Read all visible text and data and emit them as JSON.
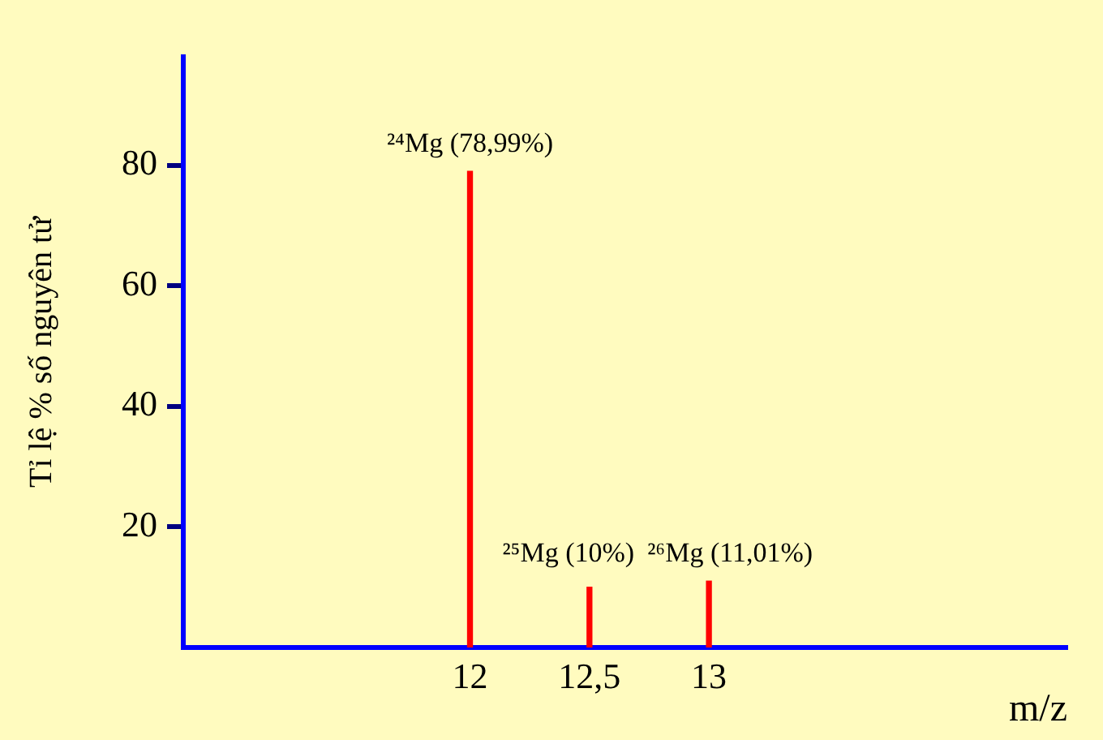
{
  "chart_data": {
    "type": "bar",
    "xlabel": "m/z",
    "ylabel": "Tỉ lệ % số nguyên tử",
    "x": [
      12,
      12.5,
      13
    ],
    "values": [
      78.99,
      10,
      11.01
    ],
    "value_labels": [
      "²⁴Mg (78,99%)",
      "²⁵Mg (10%)",
      "²⁶Mg (11,01%)"
    ],
    "color": "#ff0000",
    "xlim": [
      10.8,
      14.5
    ],
    "xticks": [
      12,
      {
        "value": 12.5,
        "label": "12,5"
      },
      13
    ],
    "ylim": [
      0,
      98
    ],
    "yticks": [
      20,
      40,
      60,
      80
    ],
    "grid": false,
    "legend": false
  }
}
